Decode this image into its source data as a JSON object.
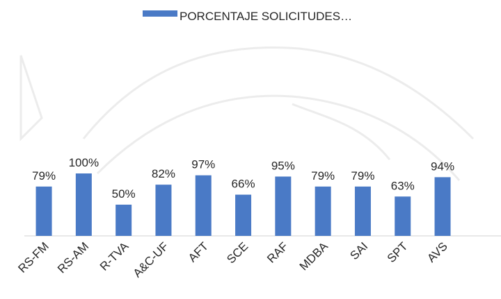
{
  "chart_data": {
    "type": "bar",
    "series": [
      {
        "name": "PORCENTAJE SOLICITUDES…",
        "color": "#4a7ac6",
        "values": [
          79,
          100,
          50,
          82,
          97,
          66,
          95,
          79,
          79,
          63,
          94
        ],
        "value_labels": [
          "79%",
          "100%",
          "50%",
          "82%",
          "97%",
          "66%",
          "95%",
          "79%",
          "79%",
          "63%",
          "94%"
        ]
      }
    ],
    "categories": [
      "RS-FM",
      "RS-AM",
      "R-TVA",
      "A&C-UF",
      "AFT",
      "SCE",
      "RAF",
      "MDBA",
      "SAI",
      "SPT",
      "AVS"
    ],
    "legend": "top"
  }
}
